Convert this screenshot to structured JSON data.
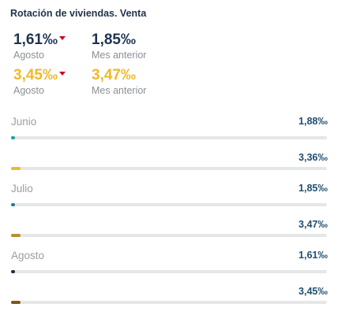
{
  "widget": {
    "title": "Rotación de viviendas. Venta",
    "kpis": [
      {
        "value": "1,61‰",
        "label": "Agosto",
        "color": "#1c3350",
        "trend": "down",
        "trend_color": "#d0021b"
      },
      {
        "value": "1,85‰",
        "label": "Mes anterior",
        "color": "#1c3350"
      },
      {
        "value": "3,45‰",
        "label": "Agosto",
        "color": "#f0b929",
        "trend": "down",
        "trend_color": "#d0021b"
      },
      {
        "value": "3,47‰",
        "label": "Mes anterior",
        "color": "#f0b929"
      }
    ],
    "sections": [
      {
        "label": "Junio",
        "rows": [
          {
            "value": "1,88‰",
            "fraction": 0.012,
            "color": "#17a2a7"
          },
          {
            "value": "3,36‰",
            "fraction": 0.03,
            "color": "#f0b929"
          }
        ]
      },
      {
        "label": "Julio",
        "rows": [
          {
            "value": "1,85‰",
            "fraction": 0.012,
            "color": "#17848e"
          },
          {
            "value": "3,47‰",
            "fraction": 0.03,
            "color": "#b8902a"
          }
        ]
      },
      {
        "label": "Agosto",
        "rows": [
          {
            "value": "1,61‰",
            "fraction": 0.012,
            "color": "#1a2c4e"
          },
          {
            "value": "3,45‰",
            "fraction": 0.03,
            "color": "#7b5a1a"
          }
        ]
      }
    ]
  }
}
